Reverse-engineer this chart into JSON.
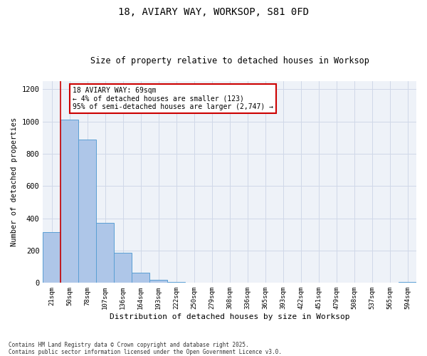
{
  "title_line1": "18, AVIARY WAY, WORKSOP, S81 0FD",
  "title_line2": "Size of property relative to detached houses in Worksop",
  "xlabel": "Distribution of detached houses by size in Worksop",
  "ylabel": "Number of detached properties",
  "categories": [
    "21sqm",
    "50sqm",
    "78sqm",
    "107sqm",
    "136sqm",
    "164sqm",
    "193sqm",
    "222sqm",
    "250sqm",
    "279sqm",
    "308sqm",
    "336sqm",
    "365sqm",
    "393sqm",
    "422sqm",
    "451sqm",
    "479sqm",
    "508sqm",
    "537sqm",
    "565sqm",
    "594sqm"
  ],
  "values": [
    315,
    1010,
    890,
    370,
    185,
    65,
    20,
    5,
    0,
    0,
    0,
    0,
    0,
    0,
    0,
    0,
    0,
    0,
    0,
    0,
    5
  ],
  "bar_color": "#aec6e8",
  "bar_edge_color": "#5a9fd4",
  "grid_color": "#d0d8e8",
  "background_color": "#eef2f8",
  "vline_x_index": 1,
  "vline_color": "#cc0000",
  "annotation_text": "18 AVIARY WAY: 69sqm\n← 4% of detached houses are smaller (123)\n95% of semi-detached houses are larger (2,747) →",
  "annotation_box_color": "#ffffff",
  "annotation_box_edge": "#cc0000",
  "ylim": [
    0,
    1250
  ],
  "yticks": [
    0,
    200,
    400,
    600,
    800,
    1000,
    1200
  ],
  "footnote_line1": "Contains HM Land Registry data © Crown copyright and database right 2025.",
  "footnote_line2": "Contains public sector information licensed under the Open Government Licence v3.0."
}
